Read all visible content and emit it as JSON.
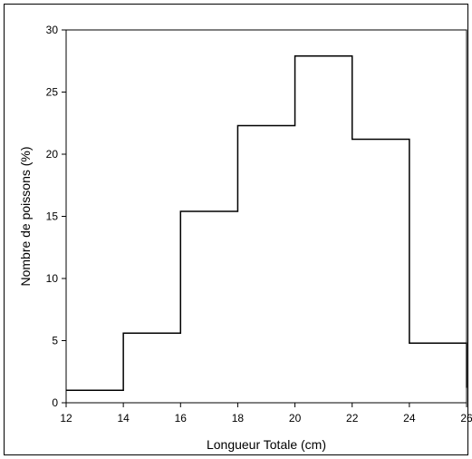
{
  "chart_data": {
    "type": "step",
    "title": "",
    "xlabel": "Longueur Totale (cm)",
    "ylabel": "Nombre de poissons (%)",
    "xlim": [
      12,
      26
    ],
    "ylim": [
      0,
      30
    ],
    "xticks": [
      12,
      14,
      16,
      18,
      20,
      22,
      24,
      26
    ],
    "yticks": [
      0,
      5,
      10,
      15,
      20,
      25,
      30
    ],
    "bins": [
      {
        "x0": 12,
        "x1": 14,
        "value": 1.0
      },
      {
        "x0": 14,
        "x1": 16,
        "value": 5.6
      },
      {
        "x0": 16,
        "x1": 18,
        "value": 15.4
      },
      {
        "x0": 18,
        "x1": 20,
        "value": 22.3
      },
      {
        "x0": 20,
        "x1": 22,
        "value": 27.9
      },
      {
        "x0": 22,
        "x1": 24,
        "value": 21.2
      },
      {
        "x0": 24,
        "x1": 26,
        "value": 4.8
      }
    ],
    "end_drop_value": 1.2,
    "grid": false,
    "legend": "none",
    "line_color": "#000000"
  }
}
